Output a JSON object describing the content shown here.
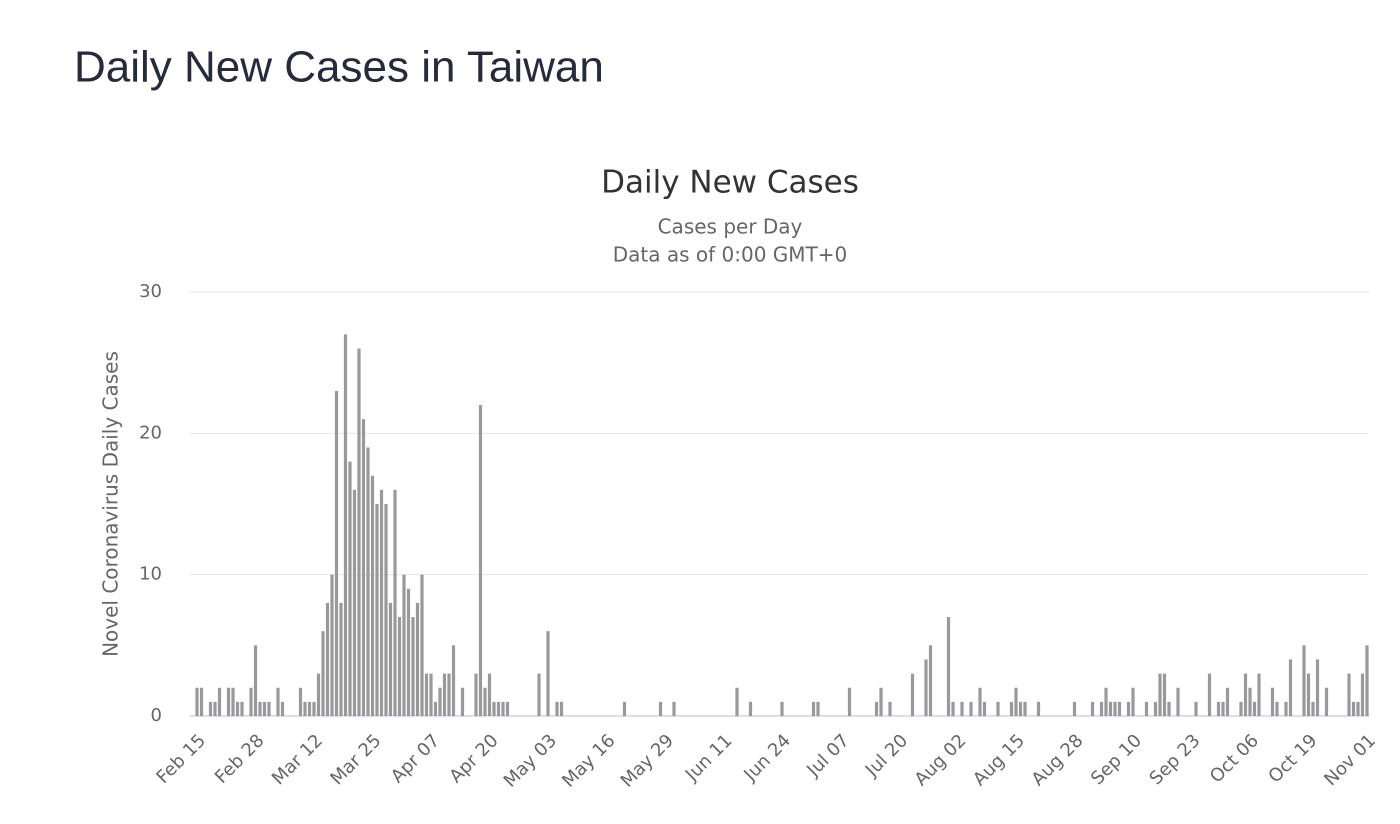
{
  "header": {
    "title": "Daily New Cases in Taiwan"
  },
  "chart_data": {
    "type": "bar",
    "title": "Daily New Cases",
    "subtitle": [
      "Cases per Day",
      "Data as of 0:00 GMT+0"
    ],
    "y_label": "Novel Coronavirus Daily Cases",
    "color": "#999999",
    "grid": true,
    "ylim": [
      0,
      30
    ],
    "yticks": [
      0,
      10,
      20,
      30
    ],
    "categories": [
      "Feb 15",
      null,
      null,
      null,
      null,
      null,
      null,
      null,
      null,
      null,
      null,
      null,
      null,
      "Feb 28",
      null,
      null,
      null,
      null,
      null,
      null,
      null,
      null,
      null,
      null,
      null,
      null,
      "Mar 12",
      null,
      null,
      null,
      null,
      null,
      null,
      null,
      null,
      null,
      null,
      null,
      null,
      "Mar 25",
      null,
      null,
      null,
      null,
      null,
      null,
      null,
      null,
      null,
      null,
      null,
      null,
      "Apr 07",
      null,
      null,
      null,
      null,
      null,
      null,
      null,
      null,
      null,
      null,
      null,
      null,
      "Apr 20",
      null,
      null,
      null,
      null,
      null,
      null,
      null,
      null,
      null,
      null,
      null,
      null,
      "May 03",
      null,
      null,
      null,
      null,
      null,
      null,
      null,
      null,
      null,
      null,
      null,
      null,
      "May 16",
      null,
      null,
      null,
      null,
      null,
      null,
      null,
      null,
      null,
      null,
      null,
      null,
      "May 29",
      null,
      null,
      null,
      null,
      null,
      null,
      null,
      null,
      null,
      null,
      null,
      null,
      "Jun 11",
      null,
      null,
      null,
      null,
      null,
      null,
      null,
      null,
      null,
      null,
      null,
      null,
      "Jun 24",
      null,
      null,
      null,
      null,
      null,
      null,
      null,
      null,
      null,
      null,
      null,
      null,
      "Jul 07",
      null,
      null,
      null,
      null,
      null,
      null,
      null,
      null,
      null,
      null,
      null,
      null,
      "Jul 20",
      null,
      null,
      null,
      null,
      null,
      null,
      null,
      null,
      null,
      null,
      null,
      null,
      "Aug 02",
      null,
      null,
      null,
      null,
      null,
      null,
      null,
      null,
      null,
      null,
      null,
      null,
      "Aug 15",
      null,
      null,
      null,
      null,
      null,
      null,
      null,
      null,
      null,
      null,
      null,
      null,
      "Aug 28",
      null,
      null,
      null,
      null,
      null,
      null,
      null,
      null,
      null,
      null,
      null,
      null,
      "Sep 10",
      null,
      null,
      null,
      null,
      null,
      null,
      null,
      null,
      null,
      null,
      null,
      null,
      "Sep 23",
      null,
      null,
      null,
      null,
      null,
      null,
      null,
      null,
      null,
      null,
      null,
      null,
      "Oct 06",
      null,
      null,
      null,
      null,
      null,
      null,
      null,
      null,
      null,
      null,
      null,
      null,
      "Oct 19",
      null,
      null,
      null,
      null,
      null,
      null,
      null,
      null,
      null,
      null,
      null,
      null,
      "Nov 01"
    ],
    "values": [
      2,
      2,
      0,
      1,
      1,
      2,
      0,
      2,
      2,
      1,
      1,
      0,
      2,
      5,
      1,
      1,
      1,
      0,
      2,
      1,
      0,
      0,
      0,
      2,
      1,
      1,
      1,
      3,
      6,
      8,
      10,
      23,
      8,
      27,
      18,
      16,
      26,
      21,
      19,
      17,
      15,
      16,
      15,
      8,
      16,
      7,
      10,
      9,
      7,
      8,
      10,
      3,
      3,
      1,
      2,
      3,
      3,
      5,
      0,
      2,
      0,
      0,
      3,
      22,
      2,
      3,
      1,
      1,
      1,
      1,
      0,
      0,
      0,
      0,
      0,
      0,
      3,
      0,
      6,
      0,
      1,
      1,
      0,
      0,
      0,
      0,
      0,
      0,
      0,
      0,
      0,
      0,
      0,
      0,
      0,
      1,
      0,
      0,
      0,
      0,
      0,
      0,
      0,
      1,
      0,
      0,
      1,
      0,
      0,
      0,
      0,
      0,
      0,
      0,
      0,
      0,
      0,
      0,
      0,
      0,
      2,
      0,
      0,
      1,
      0,
      0,
      0,
      0,
      0,
      0,
      1,
      0,
      0,
      0,
      0,
      0,
      0,
      1,
      1,
      0,
      0,
      0,
      0,
      0,
      0,
      2,
      0,
      0,
      0,
      0,
      0,
      1,
      2,
      0,
      1,
      0,
      0,
      0,
      0,
      3,
      0,
      0,
      4,
      5,
      0,
      0,
      0,
      7,
      1,
      0,
      1,
      0,
      1,
      0,
      2,
      1,
      0,
      0,
      1,
      0,
      0,
      1,
      2,
      1,
      1,
      0,
      0,
      1,
      0,
      0,
      0,
      0,
      0,
      0,
      0,
      1,
      0,
      0,
      0,
      1,
      0,
      1,
      2,
      1,
      1,
      1,
      0,
      1,
      2,
      0,
      0,
      1,
      0,
      1,
      3,
      3,
      1,
      0,
      2,
      0,
      0,
      0,
      1,
      0,
      0,
      3,
      0,
      1,
      1,
      2,
      0,
      0,
      1,
      3,
      2,
      1,
      3,
      0,
      0,
      2,
      1,
      0,
      1,
      4,
      0,
      0,
      5,
      3,
      1,
      4,
      0,
      2,
      0,
      0,
      0,
      0,
      3,
      1,
      1,
      3,
      5
    ]
  }
}
